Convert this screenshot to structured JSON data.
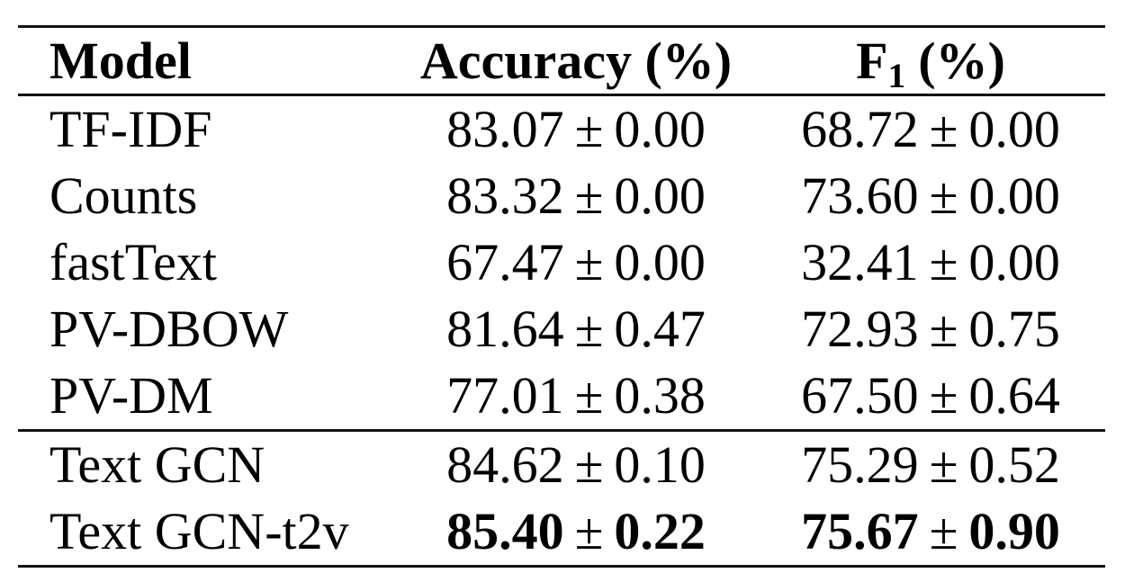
{
  "table": {
    "pm": "±",
    "header": {
      "model": "Model",
      "accuracy": "Accuracy (%)",
      "f1_base": "F",
      "f1_subscript": "1",
      "f1_unit": "(%)"
    },
    "rows": [
      {
        "model": "TF-IDF",
        "acc_mean": "83.07",
        "acc_std": "0.00",
        "f1_mean": "68.72",
        "f1_std": "0.00"
      },
      {
        "model": "Counts",
        "acc_mean": "83.32",
        "acc_std": "0.00",
        "f1_mean": "73.60",
        "f1_std": "0.00"
      },
      {
        "model": "fastText",
        "acc_mean": "67.47",
        "acc_std": "0.00",
        "f1_mean": "32.41",
        "f1_std": "0.00"
      },
      {
        "model": "PV-DBOW",
        "acc_mean": "81.64",
        "acc_std": "0.47",
        "f1_mean": "72.93",
        "f1_std": "0.75"
      },
      {
        "model": "PV-DM",
        "acc_mean": "77.01",
        "acc_std": "0.38",
        "f1_mean": "67.50",
        "f1_std": "0.64"
      },
      {
        "model": "Text GCN",
        "acc_mean": "84.62",
        "acc_std": "0.10",
        "f1_mean": "75.29",
        "f1_std": "0.52"
      },
      {
        "model": "Text GCN-t2v",
        "acc_mean": "85.40",
        "acc_std": "0.22",
        "f1_mean": "75.67",
        "f1_std": "0.90",
        "bold_values": true
      }
    ],
    "colors": {
      "text": "#000000",
      "background": "#ffffff",
      "rule": "#111111"
    }
  }
}
